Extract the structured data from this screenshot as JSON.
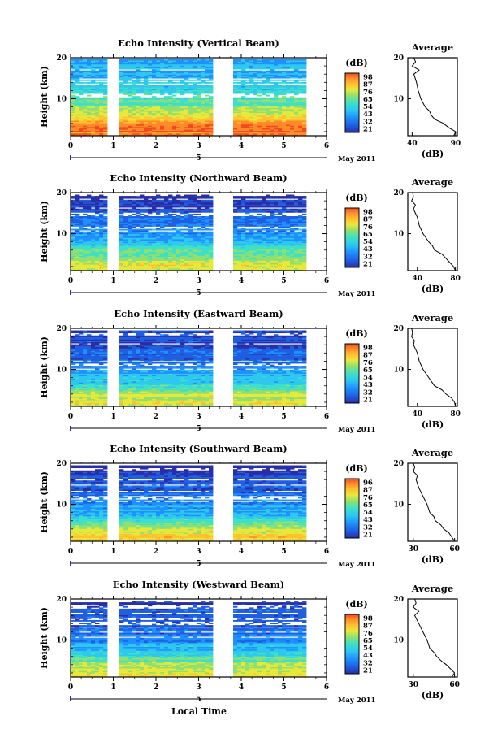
{
  "figure": {
    "x_axis_title": "Local Time",
    "date_axis": {
      "day_label": "5",
      "month_label": "May 2011"
    }
  },
  "colors": {
    "colormap": [
      "#2a2da8",
      "#1f5fe0",
      "#1e90ff",
      "#2ec8ee",
      "#3de0c8",
      "#8fe070",
      "#e8e83a",
      "#ffc030",
      "#ff8a2a",
      "#f04a1e"
    ]
  },
  "chart_data": [
    {
      "type": "heatmap",
      "title": "Echo Intensity (Vertical Beam)",
      "ylabel": "Height (km)",
      "x_ticks": [
        "0",
        "1",
        "2",
        "3",
        "4",
        "5",
        "6"
      ],
      "y_ticks": [
        "10",
        "20"
      ],
      "xlim": [
        0,
        6
      ],
      "ylim": [
        1,
        20
      ],
      "colorbar": {
        "label": "(dB)",
        "ticks": [
          "98",
          "87",
          "76",
          "65",
          "54",
          "43",
          "32",
          "21"
        ],
        "range": [
          21,
          98
        ]
      },
      "data_gaps_hours": [
        [
          0.83,
          1.12
        ],
        [
          3.33,
          3.85
        ],
        [
          5.55,
          6.0
        ]
      ],
      "data_top_km": 19.7,
      "profile_by_height": {
        "heights_km": [
          1,
          2,
          3,
          4,
          5,
          6,
          7,
          8,
          10,
          12,
          14,
          16,
          18,
          20
        ],
        "values_db": [
          85,
          90,
          90,
          88,
          80,
          70,
          65,
          62,
          56,
          52,
          48,
          45,
          45,
          40
        ]
      },
      "average": {
        "title": "Average",
        "xlabel": "(dB)",
        "x_ticks": [
          "40",
          "90"
        ],
        "xlim": [
          35,
          92
        ],
        "y_ticks": [
          "10",
          "20"
        ],
        "heights_km": [
          1,
          2,
          3,
          4,
          5,
          6,
          7,
          8,
          10,
          12,
          14,
          16,
          17,
          18,
          19,
          20
        ],
        "values_db": [
          88,
          90,
          82,
          76,
          66,
          62,
          60,
          55,
          50,
          47,
          45,
          42,
          48,
          40,
          44,
          42
        ]
      }
    },
    {
      "type": "heatmap",
      "title": "Echo Intensity (Northward Beam)",
      "ylabel": "Height (km)",
      "x_ticks": [
        "0",
        "1",
        "2",
        "3",
        "4",
        "5",
        "6"
      ],
      "y_ticks": [
        "10",
        "20"
      ],
      "xlim": [
        0,
        6
      ],
      "ylim": [
        1,
        20
      ],
      "colorbar": {
        "label": "(dB)",
        "ticks": [
          "98",
          "87",
          "76",
          "65",
          "54",
          "43",
          "32",
          "21"
        ],
        "range": [
          21,
          98
        ]
      },
      "data_gaps_hours": [
        [
          0.83,
          1.12
        ],
        [
          3.33,
          3.85
        ],
        [
          5.55,
          6.0
        ]
      ],
      "data_top_km": 19.5,
      "profile_by_height": {
        "heights_km": [
          1,
          2,
          3,
          4,
          5,
          6,
          7,
          8,
          10,
          12,
          14,
          16,
          18,
          20
        ],
        "values_db": [
          70,
          72,
          70,
          66,
          60,
          55,
          50,
          46,
          40,
          36,
          32,
          30,
          28,
          26
        ]
      },
      "average": {
        "title": "Average",
        "xlabel": "(dB)",
        "x_ticks": [
          "40",
          "80"
        ],
        "xlim": [
          30,
          82
        ],
        "y_ticks": [
          "10",
          "20"
        ],
        "heights_km": [
          1,
          2,
          3,
          4,
          5,
          6,
          7,
          8,
          10,
          12,
          14,
          16,
          17,
          18,
          19,
          20
        ],
        "values_db": [
          80,
          78,
          74,
          70,
          66,
          58,
          56,
          52,
          46,
          42,
          40,
          36,
          38,
          34,
          36,
          35
        ]
      }
    },
    {
      "type": "heatmap",
      "title": "Echo Intensity (Eastward Beam)",
      "ylabel": "Height (km)",
      "x_ticks": [
        "0",
        "1",
        "2",
        "3",
        "4",
        "5",
        "6"
      ],
      "y_ticks": [
        "10",
        "20"
      ],
      "xlim": [
        0,
        6
      ],
      "ylim": [
        1,
        20
      ],
      "colorbar": {
        "label": "(dB)",
        "ticks": [
          "98",
          "87",
          "76",
          "65",
          "54",
          "43",
          "32",
          "21"
        ],
        "range": [
          21,
          98
        ]
      },
      "data_gaps_hours": [
        [
          0.83,
          1.12
        ],
        [
          3.33,
          3.85
        ],
        [
          5.55,
          6.0
        ]
      ],
      "data_top_km": 19.5,
      "profile_by_height": {
        "heights_km": [
          1,
          2,
          3,
          4,
          5,
          6,
          7,
          8,
          10,
          12,
          14,
          16,
          18,
          20
        ],
        "values_db": [
          70,
          72,
          70,
          66,
          60,
          55,
          50,
          46,
          40,
          36,
          32,
          30,
          28,
          26
        ]
      },
      "average": {
        "title": "Average",
        "xlabel": "(dB)",
        "x_ticks": [
          "40",
          "80"
        ],
        "xlim": [
          30,
          82
        ],
        "y_ticks": [
          "10",
          "20"
        ],
        "heights_km": [
          1,
          2,
          3,
          4,
          5,
          6,
          7,
          8,
          10,
          12,
          14,
          16,
          17,
          18,
          19,
          20
        ],
        "values_db": [
          80,
          79,
          76,
          70,
          66,
          58,
          55,
          52,
          46,
          42,
          40,
          36,
          37,
          34,
          35,
          34
        ]
      }
    },
    {
      "type": "heatmap",
      "title": "Echo Intensity (Southward Beam)",
      "ylabel": "Height (km)",
      "x_ticks": [
        "0",
        "1",
        "2",
        "3",
        "4",
        "5",
        "6"
      ],
      "y_ticks": [
        "10",
        "20"
      ],
      "xlim": [
        0,
        6
      ],
      "ylim": [
        1,
        20
      ],
      "colorbar": {
        "label": "(dB)",
        "ticks": [
          "96",
          "87",
          "76",
          "65",
          "54",
          "43",
          "32",
          "21"
        ],
        "range": [
          21,
          96
        ]
      },
      "data_gaps_hours": [
        [
          0.83,
          1.12
        ],
        [
          3.33,
          3.85
        ],
        [
          5.55,
          6.0
        ]
      ],
      "data_top_km": 19.5,
      "profile_by_height": {
        "heights_km": [
          1,
          2,
          3,
          4,
          5,
          6,
          7,
          8,
          10,
          12,
          14,
          16,
          18,
          20
        ],
        "values_db": [
          70,
          74,
          72,
          66,
          60,
          55,
          50,
          46,
          40,
          36,
          32,
          30,
          28,
          26
        ]
      },
      "average": {
        "title": "Average",
        "xlabel": "(dB)",
        "x_ticks": [
          "30",
          "60"
        ],
        "xlim": [
          26,
          62
        ],
        "y_ticks": [
          "10",
          "20"
        ],
        "heights_km": [
          1,
          2,
          3,
          4,
          5,
          6,
          7,
          8,
          10,
          12,
          14,
          16,
          17,
          18,
          19,
          20
        ],
        "values_db": [
          60,
          58,
          56,
          52,
          50,
          46,
          45,
          42,
          40,
          37,
          34,
          32,
          33,
          30,
          31,
          30
        ]
      }
    },
    {
      "type": "heatmap",
      "title": "Echo Intensity (Westward Beam)",
      "ylabel": "Height (km)",
      "x_ticks": [
        "0",
        "1",
        "2",
        "3",
        "4",
        "5",
        "6"
      ],
      "y_ticks": [
        "10",
        "20"
      ],
      "xlim": [
        0,
        6
      ],
      "ylim": [
        1,
        20
      ],
      "colorbar": {
        "label": "(dB)",
        "ticks": [
          "98",
          "87",
          "76",
          "65",
          "54",
          "43",
          "32",
          "21"
        ],
        "range": [
          21,
          98
        ]
      },
      "data_gaps_hours": [
        [
          0.83,
          1.12
        ],
        [
          3.33,
          3.85
        ],
        [
          5.55,
          6.0
        ]
      ],
      "data_top_km": 19.5,
      "profile_by_height": {
        "heights_km": [
          1,
          2,
          3,
          4,
          5,
          6,
          7,
          8,
          10,
          12,
          14,
          16,
          18,
          20
        ],
        "values_db": [
          68,
          72,
          70,
          66,
          60,
          55,
          50,
          46,
          40,
          36,
          32,
          30,
          28,
          26
        ]
      },
      "average": {
        "title": "Average",
        "xlabel": "(dB)",
        "x_ticks": [
          "30",
          "60"
        ],
        "xlim": [
          26,
          62
        ],
        "y_ticks": [
          "10",
          "20"
        ],
        "heights_km": [
          1,
          2,
          3,
          4,
          5,
          6,
          7,
          8,
          10,
          12,
          14,
          16,
          17,
          18,
          19,
          20
        ],
        "values_db": [
          58,
          60,
          57,
          54,
          50,
          47,
          45,
          42,
          40,
          37,
          34,
          31,
          34,
          30,
          32,
          31
        ]
      }
    }
  ]
}
